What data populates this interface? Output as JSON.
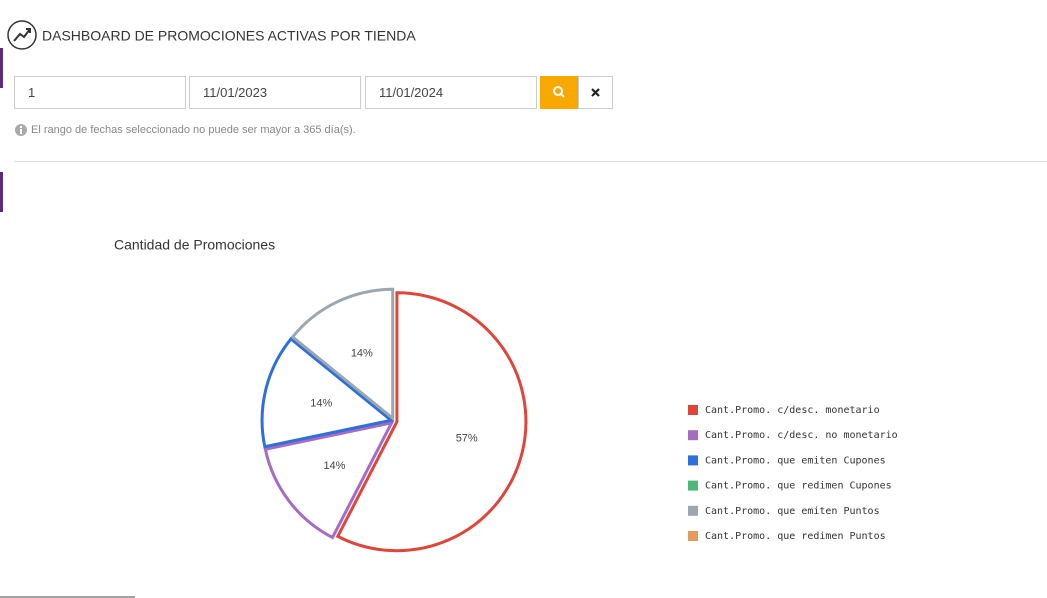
{
  "header": {
    "title": "DASHBOARD DE PROMOCIONES ACTIVAS POR TIENDA"
  },
  "form": {
    "store": "1",
    "start_date": "11/01/2023",
    "end_date": "11/01/2024",
    "note": "El rango de fechas seleccionado no puede ser mayor a 365 día(s)."
  },
  "chart_data": {
    "type": "pie",
    "title": "Cantidad de Promociones",
    "categories": [
      "Cant.Promo. c/desc. monetario",
      "Cant.Promo. c/desc. no monetario",
      "Cant.Promo. que emiten Cupones",
      "Cant.Promo. que redimen Cupones",
      "Cant.Promo. que emiten Puntos",
      "Cant.Promo. que redimen Puntos"
    ],
    "values": [
      57,
      14,
      14,
      0,
      14,
      0
    ],
    "value_labels": [
      "57%",
      "14%",
      "14%",
      null,
      "14%",
      null
    ],
    "colors": [
      "#e0453a",
      "#a66bc2",
      "#2f6fdc",
      "#4cb97a",
      "#9aa7b0",
      "#e59a62"
    ],
    "legend": "right"
  }
}
